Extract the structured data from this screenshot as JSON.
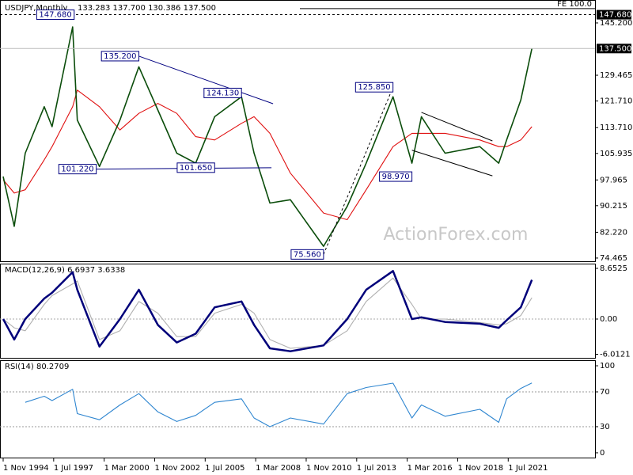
{
  "chart_data": [
    {
      "type": "line",
      "title": "USDJPY,Monthly",
      "subtitle": "133.283 137.700 130.386 137.500",
      "watermark": "ActionForex.com",
      "xlim": [
        "1 Sep 1994",
        "1 Feb 2026"
      ],
      "x": [
        "1 Nov 1994",
        "1 Jun 1995",
        "1 Jan 1996",
        "1 Jan 1997",
        "1 Jun 1997",
        "1 Jul 1998",
        "1 Oct 1998",
        "1 Dec 1999",
        "1 Jan 2001",
        "1 Jan 2002",
        "1 Jan 2003",
        "1 Jan 2004",
        "1 Jan 2005",
        "1 Jan 2006",
        "1 Jun 2007",
        "1 Feb 2008",
        "1 Dec 2008",
        "1 Jan 2010",
        "1 Oct 2011",
        "1 Jan 2013",
        "1 Jan 2014",
        "1 Jun 2015",
        "1 Jun 2016",
        "1 Dec 2016",
        "1 Mar 2018",
        "1 Jan 2020",
        "1 Jan 2021",
        "1 Jun 2021",
        "1 Mar 2022",
        "1 Oct 2022"
      ],
      "series": [
        {
          "name": "Price",
          "color": "#0b4d0b",
          "values": [
            99,
            84,
            106,
            120,
            114,
            144,
            116,
            102,
            116,
            132,
            119,
            106,
            103,
            117,
            123,
            106,
            91,
            92,
            78,
            90,
            103,
            123,
            103,
            117,
            106,
            108,
            103,
            110,
            122,
            137.5
          ]
        },
        {
          "name": "MA",
          "color": "#e01010",
          "values": [
            98,
            94,
            95,
            104,
            108,
            120,
            125,
            120,
            113,
            118,
            121,
            118,
            111,
            110,
            115,
            117,
            112,
            100,
            88,
            86,
            95,
            108,
            112,
            112,
            112,
            110,
            108,
            108,
            110,
            114
          ]
        }
      ],
      "ylim": [
        73.5,
        152.1
      ],
      "yticks": [
        74.465,
        {
          "value": 82.22,
          "label": "82.220"
        },
        90.215,
        97.965,
        105.935,
        {
          "value": 113.71,
          "label": "113.710"
        },
        {
          "value": 121.71,
          "label": "121.710"
        },
        129.465,
        {
          "value": 145.2,
          "label": "145.200"
        }
      ],
      "price_marks": [
        {
          "value": 137.5,
          "label": "137.500"
        },
        {
          "value": 147.68,
          "label": "147.680"
        }
      ],
      "annotations": [
        {
          "x": "1 Aug 1998",
          "value": 147.68,
          "label": "147.680"
        },
        {
          "x": "1 Jan 2002",
          "value": 135.2,
          "label": "135.200"
        },
        {
          "x": "1 Jun 2007",
          "value": 124.13,
          "label": "124.130"
        },
        {
          "x": "1 Oct 1999",
          "value": 101.22,
          "label": "101.220"
        },
        {
          "x": "1 Jan 2006",
          "value": 101.65,
          "label": "101.650"
        },
        {
          "x": "1 Jun 2015",
          "value": 125.85,
          "label": "125.850"
        },
        {
          "x": "1 Jun 2016",
          "value": 98.97,
          "label": "98.970"
        },
        {
          "x": "1 Oct 2011",
          "value": 75.56,
          "label": "75.560"
        }
      ],
      "trendlines": [
        {
          "x": [
            "1 Jan 2002",
            "1 Feb 2009"
          ],
          "values": [
            135.2,
            120.9
          ],
          "color": "#000080",
          "dashed": false
        },
        {
          "x": [
            "1 Oct 1999",
            "1 Jan 2009"
          ],
          "values": [
            101.22,
            101.65
          ],
          "color": "#000080",
          "dashed": false
        },
        {
          "x": [
            "1 Dec 2016",
            "1 Sep 2020"
          ],
          "values": [
            118.3,
            109.7
          ],
          "color": "#000000",
          "dashed": false
        },
        {
          "x": [
            "1 Jun 2016",
            "1 Sep 2020"
          ],
          "values": [
            106.9,
            99.2
          ],
          "color": "#000000",
          "dashed": false
        },
        {
          "x": [
            "1 Oct 2011",
            "1 Jun 2015"
          ],
          "values": [
            75.56,
            125.85
          ],
          "color": "#000000",
          "dashed": true
        }
      ],
      "fe_line": {
        "label": "FE 100.0",
        "value": 149.5,
        "x": "1 Jul 2010"
      }
    },
    {
      "type": "line",
      "title": "MACD(12,26,9) 6.6937 3.6338",
      "x": [
        "1 Nov 1994",
        "1 Jun 1995",
        "1 Jan 1996",
        "1 Jan 1997",
        "1 Jun 1997",
        "1 Jul 1998",
        "1 Oct 1998",
        "1 Dec 1999",
        "1 Jan 2001",
        "1 Jan 2002",
        "1 Jan 2003",
        "1 Jan 2004",
        "1 Jan 2005",
        "1 Jan 2006",
        "1 Jun 2007",
        "1 Feb 2008",
        "1 Dec 2008",
        "1 Jan 2010",
        "1 Oct 2011",
        "1 Jan 2013",
        "1 Jan 2014",
        "1 Jun 2015",
        "1 Jun 2016",
        "1 Dec 2016",
        "1 Mar 2018",
        "1 Jan 2020",
        "1 Jan 2021",
        "1 Jun 2021",
        "1 Mar 2022",
        "1 Oct 2022"
      ],
      "series": [
        {
          "name": "MACD",
          "color": "#00007a",
          "values": [
            0,
            -3.5,
            0,
            3.5,
            4.5,
            8,
            5,
            -4.7,
            0,
            5,
            -1,
            -4,
            -2.5,
            2,
            3,
            -1,
            -5,
            -5.5,
            -4.5,
            0,
            5,
            8.2,
            0,
            0.3,
            -0.5,
            -0.8,
            -1.5,
            -0.2,
            2,
            6.6937
          ]
        },
        {
          "name": "Signal",
          "color": "#b0b0b0",
          "values": [
            0,
            -1.5,
            -2,
            2.5,
            4,
            6,
            6.5,
            -3.5,
            -2,
            3,
            1,
            -3,
            -3,
            1,
            2.5,
            1,
            -3.5,
            -5,
            -4.5,
            -2,
            3,
            7,
            2.5,
            0,
            0,
            -0.6,
            -1,
            -0.8,
            0.6,
            3.6338
          ]
        }
      ],
      "ylim": [
        -6.62,
        9.46
      ],
      "yticks": [
        -6.0121,
        {
          "value": 0,
          "label": "0.00"
        },
        8.6525
      ]
    },
    {
      "type": "line",
      "title": "RSI(14) 80.2709",
      "x": [
        "1 Nov 1994",
        "1 Jun 1995",
        "1 Jan 1996",
        "1 Jan 1997",
        "1 Jun 1997",
        "1 Jul 1998",
        "1 Oct 1998",
        "1 Dec 1999",
        "1 Jan 2001",
        "1 Jan 2002",
        "1 Jan 2003",
        "1 Jan 2004",
        "1 Jan 2005",
        "1 Jan 2006",
        "1 Jun 2007",
        "1 Feb 2008",
        "1 Dec 2008",
        "1 Jan 2010",
        "1 Oct 2011",
        "1 Jan 2013",
        "1 Jan 2014",
        "1 Jun 2015",
        "1 Jun 2016",
        "1 Dec 2016",
        "1 Mar 2018",
        "1 Jan 2020",
        "1 Jan 2021",
        "1 Jun 2021",
        "1 Mar 2022",
        "1 Oct 2022"
      ],
      "series": [
        {
          "name": "RSI",
          "color": "#2f86d0",
          "values": [
            null,
            null,
            58,
            65,
            60,
            73,
            45,
            38,
            55,
            68,
            47,
            36,
            43,
            58,
            62,
            40,
            30,
            40,
            33,
            68,
            75,
            80,
            40,
            55,
            42,
            50,
            35,
            62,
            74,
            80.2709
          ]
        }
      ],
      "ylim": [
        -5.5,
        106.4
      ],
      "yticks": [
        0,
        30,
        70,
        100
      ],
      "levels": [
        30,
        70
      ],
      "xticks": [
        "1 Nov 1994",
        "1 Jul 1997",
        "1 Mar 2000",
        "1 Nov 2002",
        "1 Jul 2005",
        "1 Mar 2008",
        "1 Nov 2010",
        "1 Jul 2013",
        "1 Mar 2016",
        "1 Nov 2018",
        "1 Jul 2021"
      ]
    }
  ]
}
